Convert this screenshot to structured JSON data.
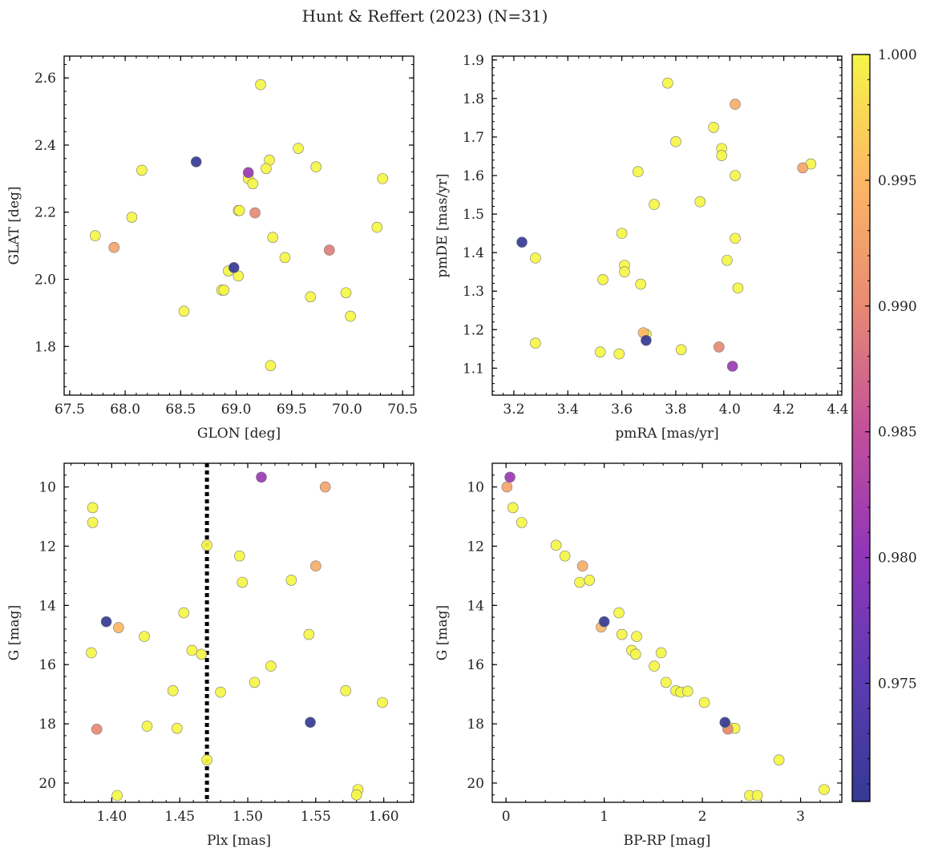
{
  "colors": {
    "cmap": [
      "#353a94",
      "#5d3bb1",
      "#9136b8",
      "#c3509a",
      "#e88b73",
      "#fdb765",
      "#f5f547"
    ],
    "edge": "#777777",
    "vline": "#000000"
  },
  "chart_data": {
    "type": "scatter",
    "title": "Hunt & Reffert (2023) (N=31)",
    "colorbar": {
      "range": [
        0.9703,
        1.0
      ],
      "ticks": [
        0.975,
        0.98,
        0.985,
        0.99,
        0.995,
        1.0
      ],
      "tick_labels": [
        "0.975",
        "0.980",
        "0.985",
        "0.990",
        "0.995",
        "1.000"
      ]
    },
    "panels": [
      {
        "id": "glon-glat",
        "xlabel": "GLON [deg]",
        "ylabel": "GLAT [deg]",
        "xlim": [
          67.45,
          70.6
        ],
        "ylim": [
          1.655,
          2.665
        ],
        "invert_y": false,
        "xticks": [
          67.5,
          68.0,
          68.5,
          69.0,
          69.5,
          70.0,
          70.5
        ],
        "xtick_labels": [
          "67.5",
          "68.0",
          "68.5",
          "69.0",
          "69.5",
          "70.0",
          "70.5"
        ],
        "yticks": [
          1.8,
          2.0,
          2.2,
          2.4,
          2.6
        ],
        "ytick_labels": [
          "1.8",
          "2.0",
          "2.2",
          "2.4",
          "2.6"
        ],
        "points": [
          [
            69.22,
            2.58,
            1.0
          ],
          [
            69.56,
            2.39,
            1.0
          ],
          [
            69.3,
            2.355,
            1.0
          ],
          [
            69.72,
            2.335,
            1.0
          ],
          [
            69.27,
            2.33,
            1.0
          ],
          [
            68.15,
            2.325,
            1.0
          ],
          [
            69.11,
            2.3,
            1.0
          ],
          [
            70.32,
            2.3,
            1.0
          ],
          [
            69.15,
            2.285,
            1.0
          ],
          [
            69.02,
            2.205,
            1.0
          ],
          [
            69.03,
            2.205,
            1.0
          ],
          [
            68.06,
            2.185,
            1.0
          ],
          [
            70.27,
            2.155,
            1.0
          ],
          [
            67.73,
            2.13,
            1.0
          ],
          [
            69.33,
            2.125,
            1.0
          ],
          [
            69.44,
            2.065,
            1.0
          ],
          [
            68.93,
            2.025,
            1.0
          ],
          [
            69.02,
            2.01,
            1.0
          ],
          [
            68.87,
            1.968,
            1.0
          ],
          [
            68.89,
            1.968,
            1.0
          ],
          [
            69.99,
            1.96,
            1.0
          ],
          [
            69.67,
            1.948,
            1.0
          ],
          [
            68.53,
            1.905,
            1.0
          ],
          [
            70.03,
            1.89,
            1.0
          ],
          [
            69.31,
            1.743,
            1.0
          ],
          [
            69.17,
            2.198,
            0.99
          ],
          [
            67.9,
            2.095,
            0.993
          ],
          [
            69.84,
            2.087,
            0.989
          ],
          [
            68.64,
            2.35,
            0.9703
          ],
          [
            69.11,
            2.318,
            0.981
          ],
          [
            68.98,
            2.035,
            0.9703
          ]
        ]
      },
      {
        "id": "pmra-pmde",
        "xlabel": "pmRA [mas/yr]",
        "ylabel": "pmDE [mas/yr]",
        "xlim": [
          3.12,
          4.415
        ],
        "ylim": [
          1.03,
          1.91
        ],
        "invert_y": false,
        "xticks": [
          3.2,
          3.4,
          3.6,
          3.8,
          4.0,
          4.2,
          4.4
        ],
        "xtick_labels": [
          "3.2",
          "3.4",
          "3.6",
          "3.8",
          "4.0",
          "4.2",
          "4.4"
        ],
        "yticks": [
          1.1,
          1.2,
          1.3,
          1.4,
          1.5,
          1.6,
          1.7,
          1.8,
          1.9
        ],
        "ytick_labels": [
          "1.1",
          "1.2",
          "1.3",
          "1.4",
          "1.5",
          "1.6",
          "1.7",
          "1.8",
          "1.9"
        ],
        "points": [
          [
            3.77,
            1.84,
            1.0
          ],
          [
            3.94,
            1.725,
            1.0
          ],
          [
            3.8,
            1.688,
            1.0
          ],
          [
            3.97,
            1.67,
            1.0
          ],
          [
            3.97,
            1.652,
            1.0
          ],
          [
            4.3,
            1.63,
            1.0
          ],
          [
            3.66,
            1.61,
            1.0
          ],
          [
            4.02,
            1.6,
            1.0
          ],
          [
            3.89,
            1.532,
            1.0
          ],
          [
            3.72,
            1.525,
            1.0
          ],
          [
            3.6,
            1.45,
            1.0
          ],
          [
            4.02,
            1.437,
            1.0
          ],
          [
            3.28,
            1.386,
            1.0
          ],
          [
            3.99,
            1.38,
            1.0
          ],
          [
            3.61,
            1.367,
            1.0
          ],
          [
            3.61,
            1.35,
            1.0
          ],
          [
            3.53,
            1.33,
            1.0
          ],
          [
            3.67,
            1.318,
            1.0
          ],
          [
            4.03,
            1.308,
            1.0
          ],
          [
            3.69,
            1.188,
            1.0
          ],
          [
            3.28,
            1.165,
            1.0
          ],
          [
            3.82,
            1.148,
            1.0
          ],
          [
            3.52,
            1.142,
            1.0
          ],
          [
            3.59,
            1.137,
            1.0
          ],
          [
            4.02,
            1.785,
            0.994
          ],
          [
            4.27,
            1.62,
            0.993
          ],
          [
            3.68,
            1.192,
            0.995
          ],
          [
            3.96,
            1.155,
            0.99
          ],
          [
            3.23,
            1.427,
            0.9703
          ],
          [
            3.69,
            1.172,
            0.9703
          ],
          [
            4.01,
            1.105,
            0.981
          ]
        ]
      },
      {
        "id": "plx-g",
        "xlabel": "Plx [mas]",
        "ylabel": "G [mag]",
        "xlim": [
          1.365,
          1.622
        ],
        "ylim": [
          9.2,
          20.65
        ],
        "invert_y": true,
        "vline_x": 1.47,
        "xticks": [
          1.4,
          1.45,
          1.5,
          1.55,
          1.6
        ],
        "xtick_labels": [
          "1.40",
          "1.45",
          "1.50",
          "1.55",
          "1.60"
        ],
        "yticks": [
          10,
          12,
          14,
          16,
          18,
          20
        ],
        "ytick_labels": [
          "10",
          "12",
          "14",
          "16",
          "18",
          "20"
        ],
        "points": [
          [
            1.386,
            10.7,
            1.0
          ],
          [
            1.386,
            11.2,
            1.0
          ],
          [
            1.47,
            11.97,
            1.0
          ],
          [
            1.494,
            12.33,
            1.0
          ],
          [
            1.496,
            13.22,
            1.0
          ],
          [
            1.532,
            13.15,
            1.0
          ],
          [
            1.453,
            14.25,
            1.0
          ],
          [
            1.424,
            15.05,
            1.0
          ],
          [
            1.545,
            14.98,
            1.0
          ],
          [
            1.385,
            15.6,
            1.0
          ],
          [
            1.459,
            15.52,
            1.0
          ],
          [
            1.466,
            15.65,
            1.0
          ],
          [
            1.517,
            16.05,
            1.0
          ],
          [
            1.505,
            16.6,
            1.0
          ],
          [
            1.445,
            16.88,
            1.0
          ],
          [
            1.48,
            16.93,
            1.0
          ],
          [
            1.572,
            16.88,
            1.0
          ],
          [
            1.599,
            17.28,
            1.0
          ],
          [
            1.426,
            18.08,
            1.0
          ],
          [
            1.448,
            18.15,
            1.0
          ],
          [
            1.47,
            19.22,
            1.0
          ],
          [
            1.581,
            20.22,
            1.0
          ],
          [
            1.58,
            20.4,
            1.0
          ],
          [
            1.404,
            20.42,
            1.0
          ],
          [
            1.557,
            10.0,
            0.993
          ],
          [
            1.55,
            12.67,
            0.994
          ],
          [
            1.405,
            14.75,
            0.995
          ],
          [
            1.389,
            18.18,
            0.99
          ],
          [
            1.51,
            9.67,
            0.981
          ],
          [
            1.396,
            14.55,
            0.9703
          ],
          [
            1.546,
            17.95,
            0.9703
          ]
        ]
      },
      {
        "id": "bprp-g",
        "xlabel": "BP-RP [mag]",
        "ylabel": "G [mag]",
        "xlim": [
          -0.14,
          3.42
        ],
        "ylim": [
          9.2,
          20.65
        ],
        "invert_y": true,
        "xticks": [
          0,
          1,
          2,
          3
        ],
        "xtick_labels": [
          "0",
          "1",
          "2",
          "3"
        ],
        "yticks": [
          10,
          12,
          14,
          16,
          18,
          20
        ],
        "ytick_labels": [
          "10",
          "12",
          "14",
          "16",
          "18",
          "20"
        ],
        "points": [
          [
            0.07,
            10.7,
            1.0
          ],
          [
            0.16,
            11.2,
            1.0
          ],
          [
            0.51,
            11.97,
            1.0
          ],
          [
            0.6,
            12.33,
            1.0
          ],
          [
            0.75,
            13.22,
            1.0
          ],
          [
            0.85,
            13.15,
            1.0
          ],
          [
            1.15,
            14.25,
            1.0
          ],
          [
            1.18,
            14.98,
            1.0
          ],
          [
            1.33,
            15.05,
            1.0
          ],
          [
            1.28,
            15.52,
            1.0
          ],
          [
            1.32,
            15.65,
            1.0
          ],
          [
            1.58,
            15.6,
            1.0
          ],
          [
            1.51,
            16.05,
            1.0
          ],
          [
            1.63,
            16.6,
            1.0
          ],
          [
            1.73,
            16.88,
            1.0
          ],
          [
            1.78,
            16.93,
            1.0
          ],
          [
            1.85,
            16.9,
            1.0
          ],
          [
            2.02,
            17.28,
            1.0
          ],
          [
            2.26,
            18.1,
            1.0
          ],
          [
            2.33,
            18.15,
            1.0
          ],
          [
            2.78,
            19.22,
            1.0
          ],
          [
            3.24,
            20.22,
            1.0
          ],
          [
            2.48,
            20.42,
            1.0
          ],
          [
            2.56,
            20.42,
            1.0
          ],
          [
            0.97,
            14.73,
            0.995
          ],
          [
            0.78,
            12.67,
            0.994
          ],
          [
            0.01,
            10.0,
            0.993
          ],
          [
            2.26,
            18.18,
            0.99
          ],
          [
            0.04,
            9.67,
            0.981
          ],
          [
            1.0,
            14.55,
            0.9703
          ],
          [
            2.23,
            17.95,
            0.9703
          ]
        ]
      }
    ]
  }
}
